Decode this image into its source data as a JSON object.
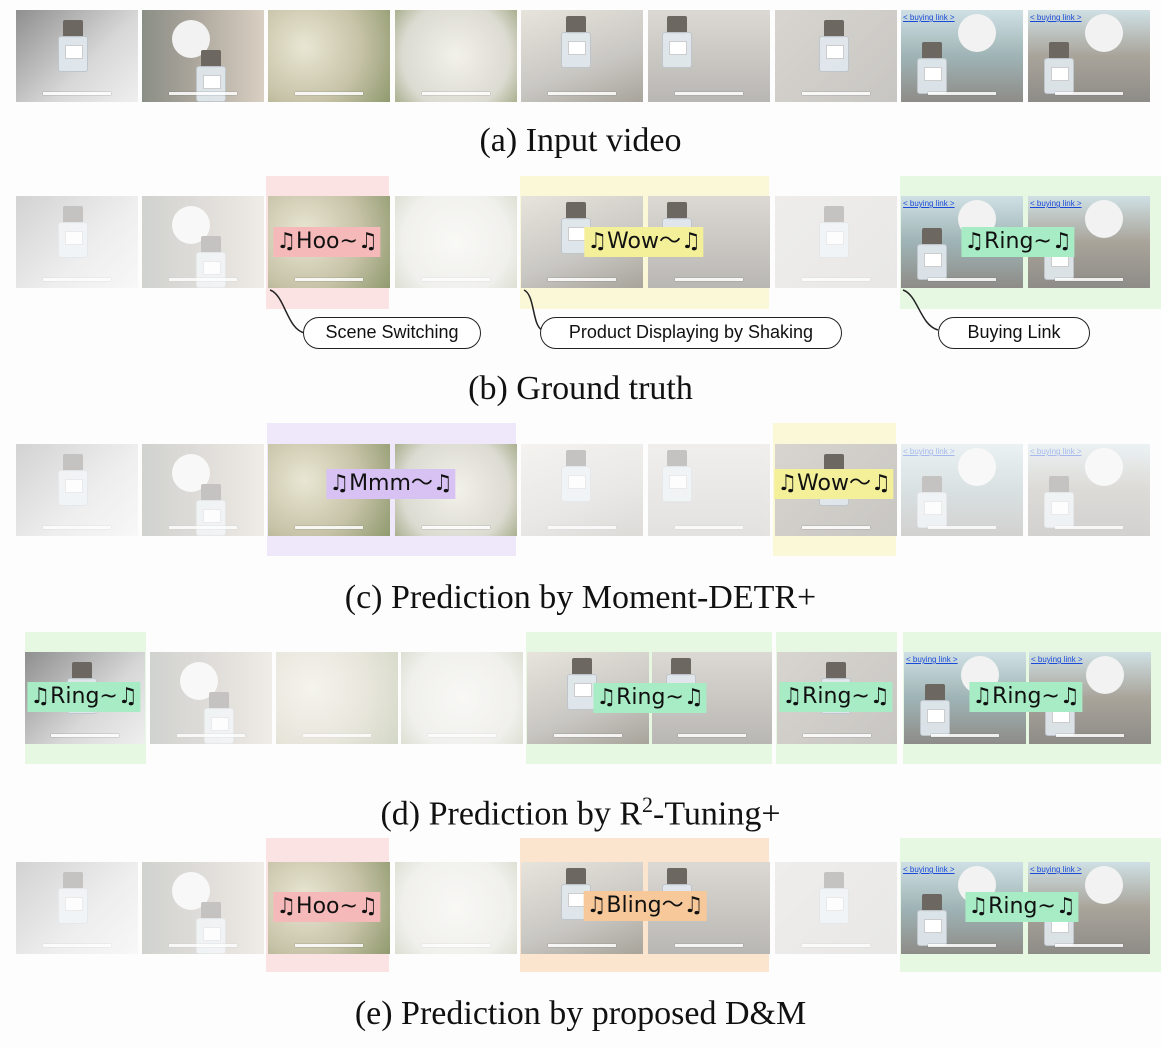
{
  "captions": {
    "a": "(a) Input video",
    "b": "(b) Ground truth",
    "c": "(c) Prediction by Moment-DETR+",
    "d_prefix": "(d) Prediction by R",
    "d_sup": "2",
    "d_suffix": "-Tuning+",
    "e": "(e) Prediction by proposed D&M"
  },
  "frame_text": {
    "buying_link": "< buying link >"
  },
  "frames": [
    {
      "scene": "bottle-hand",
      "bg": "#8f8f8f"
    },
    {
      "scene": "face-car",
      "bg": "#a9a49a"
    },
    {
      "scene": "flowers",
      "bg": "#c7c3a8"
    },
    {
      "scene": "flowers-white",
      "bg": "#dcdbd2"
    },
    {
      "scene": "bottle-flowers",
      "bg": "#c9c7c3"
    },
    {
      "scene": "bottle-dress",
      "bg": "#b9b7b3"
    },
    {
      "scene": "bottle-small",
      "bg": "#c8c6c2"
    },
    {
      "scene": "link-face",
      "bg": "#9fb4b6"
    },
    {
      "scene": "link-face",
      "bg": "#a9a49a"
    }
  ],
  "rows": {
    "b": {
      "segments": [
        {
          "label": "♫Hoo~♫",
          "tag_color": "#f6b9b9",
          "band_color": "#fbe3e3",
          "event": "Scene Switching"
        },
        {
          "label": "♫Wow～♫",
          "tag_color": "#f4f09a",
          "band_color": "#fbf8d8",
          "event": "Product Displaying by Shaking"
        },
        {
          "label": "♫Ring~♫",
          "tag_color": "#a7ecc5",
          "band_color": "#e6f7e2",
          "event": "Buying Link"
        }
      ]
    },
    "c": {
      "segments": [
        {
          "label": "♫Mmm～♫",
          "tag_color": "#d8c2f4",
          "band_color": "#efe7fa"
        },
        {
          "label": "♫Wow～♫",
          "tag_color": "#f4f09a",
          "band_color": "#fbf8d8"
        }
      ]
    },
    "d": {
      "segments": [
        {
          "label": "♫Ring~♫",
          "tag_color": "#a7ecc5",
          "band_color": "#e6f7e2"
        },
        {
          "label": "♫Ring~♫",
          "tag_color": "#a7ecc5",
          "band_color": "#e6f7e2"
        },
        {
          "label": "♫Ring~♫",
          "tag_color": "#a7ecc5",
          "band_color": "#e6f7e2"
        },
        {
          "label": "♫Ring~♫",
          "tag_color": "#a7ecc5",
          "band_color": "#e6f7e2"
        }
      ]
    },
    "e": {
      "segments": [
        {
          "label": "♫Hoo~♫",
          "tag_color": "#f6b9b9",
          "band_color": "#fbe3e3"
        },
        {
          "label": "♫Bling～♫",
          "tag_color": "#f7c99a",
          "band_color": "#fbe5cf"
        },
        {
          "label": "♫Ring~♫",
          "tag_color": "#a7ecc5",
          "band_color": "#e6f7e2"
        }
      ]
    }
  }
}
